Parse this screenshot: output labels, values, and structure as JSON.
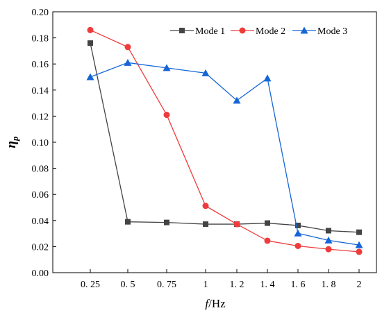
{
  "chart_data": {
    "type": "line",
    "title": "",
    "xlabel_italic": "f",
    "xlabel_unit": "/Hz",
    "ylabel_main": "η",
    "ylabel_sub": "p",
    "x_tick_labels": [
      "0. 25",
      "0. 5",
      "0. 75",
      "1",
      "1. 2",
      "1. 4",
      "1. 6",
      "1. 8",
      "2"
    ],
    "y_tick_labels": [
      "0.00",
      "0.02",
      "0.04",
      "0.06",
      "0.08",
      "0.10",
      "0.12",
      "0.14",
      "0.16",
      "0.18",
      "0.20"
    ],
    "ylim": [
      0,
      0.2
    ],
    "grid": false,
    "legend_position": "top-right",
    "series": [
      {
        "name": "Mode 1",
        "color": "#444444",
        "marker": "square",
        "values": [
          0.176,
          0.039,
          0.0385,
          0.0372,
          0.0372,
          0.038,
          0.0362,
          0.0322,
          0.031
        ]
      },
      {
        "name": "Mode 2",
        "color": "#ef3b3b",
        "marker": "circle",
        "values": [
          0.186,
          0.173,
          0.121,
          0.0512,
          0.0372,
          0.0245,
          0.0205,
          0.018,
          0.016
        ]
      },
      {
        "name": "Mode 3",
        "color": "#1565d8",
        "marker": "triangle",
        "values": [
          0.15,
          0.161,
          0.157,
          0.153,
          0.132,
          0.149,
          0.0302,
          0.0248,
          0.0212
        ]
      }
    ]
  }
}
